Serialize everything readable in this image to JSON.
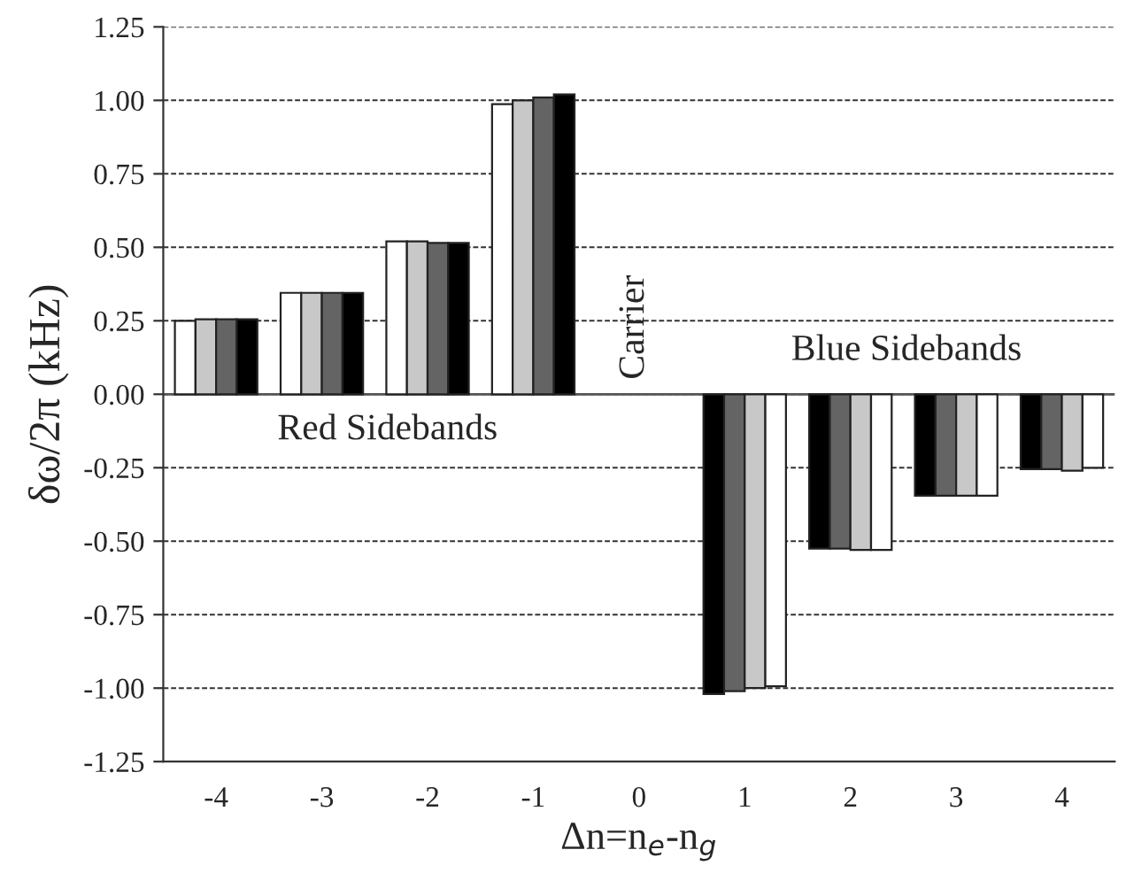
{
  "chart_data": {
    "type": "bar",
    "xlabel": "Δn=n$_{e}$-n$_{g}$",
    "ylabel": "δω/2π (kHz)",
    "categories": [
      "-4",
      "-3",
      "-2",
      "-1",
      "0",
      "1",
      "2",
      "3",
      "4"
    ],
    "series": [
      {
        "colors": [
          "#ffffff",
          "#ffffff",
          "#ffffff",
          "#ffffff",
          "#ffffff",
          "#000000",
          "#000000",
          "#000000",
          "#000000"
        ],
        "values": [
          0.25,
          0.345,
          0.52,
          0.987,
          null,
          -1.02,
          -0.525,
          -0.345,
          -0.255
        ]
      },
      {
        "colors": [
          "#c8c8c8",
          "#c8c8c8",
          "#c8c8c8",
          "#c8c8c8",
          "#c8c8c8",
          "#646464",
          "#646464",
          "#646464",
          "#646464"
        ],
        "values": [
          0.255,
          0.345,
          0.52,
          1.0,
          null,
          -1.01,
          -0.525,
          -0.345,
          -0.255
        ]
      },
      {
        "colors": [
          "#646464",
          "#646464",
          "#646464",
          "#646464",
          "#646464",
          "#c8c8c8",
          "#c8c8c8",
          "#c8c8c8",
          "#c8c8c8"
        ],
        "values": [
          0.255,
          0.345,
          0.515,
          1.01,
          null,
          -1.0,
          -0.53,
          -0.345,
          -0.26
        ]
      },
      {
        "colors": [
          "#000000",
          "#000000",
          "#000000",
          "#000000",
          "#000000",
          "#ffffff",
          "#ffffff",
          "#ffffff",
          "#ffffff"
        ],
        "values": [
          0.255,
          0.345,
          0.515,
          1.02,
          null,
          -0.994,
          -0.53,
          -0.345,
          -0.25
        ]
      }
    ],
    "ylim": [
      -1.25,
      1.25
    ],
    "yticks": [
      {
        "value": -1.25,
        "label": "-1.25"
      },
      {
        "value": -1.0,
        "label": "-1.00"
      },
      {
        "value": -0.75,
        "label": "-0.75"
      },
      {
        "value": -0.5,
        "label": "-0.50"
      },
      {
        "value": -0.25,
        "label": "-0.25"
      },
      {
        "value": 0,
        "label": "0.00"
      },
      {
        "value": 0.25,
        "label": "0.25"
      },
      {
        "value": 0.5,
        "label": "0.50"
      },
      {
        "value": 0.75,
        "label": "0.75"
      },
      {
        "value": 1.0,
        "label": "1.00"
      },
      {
        "value": 1.25,
        "label": "1.25"
      }
    ],
    "grid": "y",
    "line_style": "dashed",
    "ref_lines": [
      {
        "axis": "y",
        "value": 0,
        "color": "#555555",
        "line_style": "solid"
      }
    ],
    "annotations": [
      "Red Sidebands",
      "Carrier",
      "Blue Sidebands"
    ]
  }
}
